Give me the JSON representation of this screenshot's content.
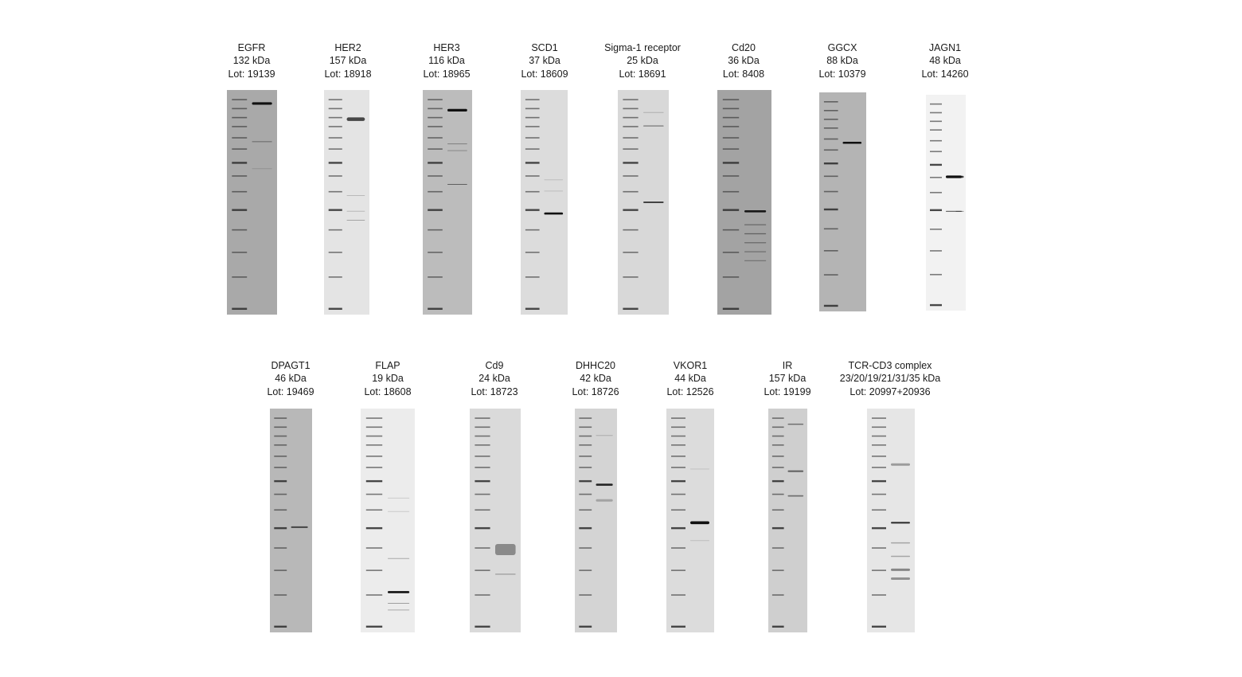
{
  "gels": [
    {
      "name": "EGFR",
      "mw": "132 kDa",
      "lot": "Lot: 19139",
      "shade": "#a9a9a9",
      "bands": [
        {
          "lane": 1,
          "pos": 0.06,
          "strength": 1.0,
          "thick": 3.2
        },
        {
          "lane": 1,
          "pos": 0.23,
          "strength": 0.45,
          "thick": 1
        },
        {
          "lane": 1,
          "pos": 0.35,
          "strength": 0.15,
          "thick": 1
        }
      ]
    },
    {
      "name": "HER2",
      "mw": "157 kDa",
      "lot": "Lot: 18918",
      "shade": "#e4e4e4",
      "bands": [
        {
          "lane": 1,
          "pos": 0.13,
          "strength": 0.75,
          "thick": 4.5
        },
        {
          "lane": 1,
          "pos": 0.47,
          "strength": 0.2,
          "thick": 1
        },
        {
          "lane": 1,
          "pos": 0.54,
          "strength": 0.2,
          "thick": 1
        },
        {
          "lane": 1,
          "pos": 0.58,
          "strength": 0.3,
          "thick": 1
        }
      ]
    },
    {
      "name": "HER3",
      "mw": "116 kDa",
      "lot": "Lot: 18965",
      "shade": "#bcbcbc",
      "bands": [
        {
          "lane": 1,
          "pos": 0.09,
          "strength": 1.0,
          "thick": 3.2
        },
        {
          "lane": 1,
          "pos": 0.24,
          "strength": 0.35,
          "thick": 1
        },
        {
          "lane": 1,
          "pos": 0.27,
          "strength": 0.3,
          "thick": 1
        },
        {
          "lane": 1,
          "pos": 0.42,
          "strength": 0.55,
          "thick": 1
        }
      ]
    },
    {
      "name": "SCD1",
      "mw": "37 kDa",
      "lot": "Lot: 18609",
      "shade": "#dcdcdc",
      "bands": [
        {
          "lane": 1,
          "pos": 0.55,
          "strength": 1.0,
          "thick": 2.6
        },
        {
          "lane": 1,
          "pos": 0.4,
          "strength": 0.15,
          "thick": 1
        },
        {
          "lane": 1,
          "pos": 0.45,
          "strength": 0.15,
          "thick": 1
        }
      ]
    },
    {
      "name": "Sigma-1 receptor",
      "mw": "25 kDa",
      "lot": "Lot: 18691",
      "shade": "#d8d8d8",
      "bands": [
        {
          "lane": 1,
          "pos": 0.16,
          "strength": 0.4,
          "thick": 1.5
        },
        {
          "lane": 1,
          "pos": 0.1,
          "strength": 0.2,
          "thick": 1
        },
        {
          "lane": 1,
          "pos": 0.5,
          "strength": 0.75,
          "thick": 2
        }
      ]
    },
    {
      "name": "Cd20",
      "mw": "36 kDa",
      "lot": "Lot: 8408",
      "shade": "#a3a3a3",
      "bands": [
        {
          "lane": 1,
          "pos": 0.54,
          "strength": 0.95,
          "thick": 2.6
        },
        {
          "lane": 1,
          "pos": 0.6,
          "strength": 0.45,
          "thick": 1.2
        },
        {
          "lane": 1,
          "pos": 0.64,
          "strength": 0.45,
          "thick": 1.2
        },
        {
          "lane": 1,
          "pos": 0.68,
          "strength": 0.4,
          "thick": 1.2
        },
        {
          "lane": 1,
          "pos": 0.72,
          "strength": 0.4,
          "thick": 1.2
        },
        {
          "lane": 1,
          "pos": 0.76,
          "strength": 0.35,
          "thick": 1.2
        }
      ]
    },
    {
      "name": "GGCX",
      "mw": "88 kDa",
      "lot": "Lot: 10379",
      "shade": "#b4b4b4",
      "bands": [
        {
          "lane": 1,
          "pos": 0.23,
          "strength": 1.0,
          "thick": 2.6
        }
      ]
    },
    {
      "name": "JAGN1",
      "mw": "48 kDa",
      "lot": "Lot: 14260",
      "shade": "#f2f2f2",
      "bands": [
        {
          "lane": 1,
          "pos": 0.38,
          "strength": 1.0,
          "thick": 3.2
        },
        {
          "lane": 2,
          "pos": 0.38,
          "strength": 0.8,
          "thick": 2.5
        },
        {
          "lane": 1,
          "pos": 0.54,
          "strength": 0.6,
          "thick": 1.2
        },
        {
          "lane": 2,
          "pos": 0.54,
          "strength": 0.45,
          "thick": 1
        }
      ]
    },
    {
      "name": "DPAGT1",
      "mw": "46 kDa",
      "lot": "Lot: 19469",
      "shade": "#b8b8b8",
      "bands": [
        {
          "lane": 1,
          "pos": 0.53,
          "strength": 0.7,
          "thick": 2
        }
      ]
    },
    {
      "name": "FLAP",
      "mw": "19 kDa",
      "lot": "Lot: 18608",
      "shade": "#ececec",
      "bands": [
        {
          "lane": 1,
          "pos": 0.82,
          "strength": 1.0,
          "thick": 2.6
        },
        {
          "lane": 1,
          "pos": 0.67,
          "strength": 0.3,
          "thick": 1
        },
        {
          "lane": 1,
          "pos": 0.87,
          "strength": 0.35,
          "thick": 1
        },
        {
          "lane": 1,
          "pos": 0.9,
          "strength": 0.3,
          "thick": 1
        },
        {
          "lane": 1,
          "pos": 0.4,
          "strength": 0.15,
          "thick": 1
        },
        {
          "lane": 1,
          "pos": 0.46,
          "strength": 0.15,
          "thick": 1
        }
      ]
    },
    {
      "name": "Cd9",
      "mw": "24 kDa",
      "lot": "Lot: 18723",
      "shade": "#dadada",
      "bands": [
        {
          "lane": 1,
          "pos": 0.63,
          "strength": 0.4,
          "thick": 14
        },
        {
          "lane": 1,
          "pos": 0.74,
          "strength": 0.35,
          "thick": 1.2
        }
      ]
    },
    {
      "name": "DHHC20",
      "mw": "42 kDa",
      "lot": "Lot: 18726",
      "shade": "#d4d4d4",
      "bands": [
        {
          "lane": 1,
          "pos": 0.34,
          "strength": 0.9,
          "thick": 2.6
        },
        {
          "lane": 1,
          "pos": 0.41,
          "strength": 0.25,
          "thick": 3
        },
        {
          "lane": 1,
          "pos": 0.12,
          "strength": 0.2,
          "thick": 1
        }
      ]
    },
    {
      "name": "VKOR1",
      "mw": "44 kDa",
      "lot": "Lot: 12526",
      "shade": "#dcdcdc",
      "bands": [
        {
          "lane": 1,
          "pos": 0.51,
          "strength": 1.0,
          "thick": 3.6
        },
        {
          "lane": 1,
          "pos": 0.27,
          "strength": 0.12,
          "thick": 1
        },
        {
          "lane": 1,
          "pos": 0.59,
          "strength": 0.15,
          "thick": 1
        }
      ]
    },
    {
      "name": "IR",
      "mw": "157 kDa",
      "lot": "Lot: 19199",
      "shade": "#cfcfcf",
      "bands": [
        {
          "lane": 1,
          "pos": 0.07,
          "strength": 0.5,
          "thick": 1.5
        },
        {
          "lane": 1,
          "pos": 0.28,
          "strength": 0.6,
          "thick": 2
        },
        {
          "lane": 1,
          "pos": 0.39,
          "strength": 0.5,
          "thick": 1.8
        }
      ]
    },
    {
      "name": "TCR-CD3 complex",
      "mw": "23/20/19/21/31/35 kDa",
      "lot": "Lot: 20997+20936",
      "shade": "#e6e6e6",
      "bands": [
        {
          "lane": 1,
          "pos": 0.25,
          "strength": 0.35,
          "thick": 3
        },
        {
          "lane": 1,
          "pos": 0.51,
          "strength": 0.85,
          "thick": 2.2
        },
        {
          "lane": 1,
          "pos": 0.6,
          "strength": 0.3,
          "thick": 1.5
        },
        {
          "lane": 1,
          "pos": 0.66,
          "strength": 0.3,
          "thick": 1.5
        },
        {
          "lane": 1,
          "pos": 0.72,
          "strength": 0.45,
          "thick": 3
        },
        {
          "lane": 1,
          "pos": 0.76,
          "strength": 0.4,
          "thick": 3
        }
      ]
    }
  ]
}
